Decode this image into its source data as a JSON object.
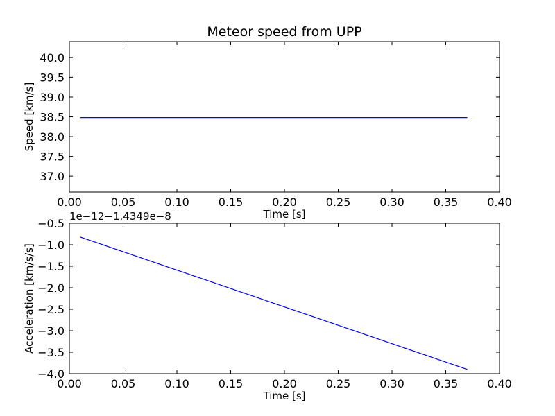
{
  "title": "Meteor speed from  UPP",
  "colors": {
    "line": "#0000ff",
    "axes": "#000000",
    "background": "#ffffff"
  },
  "chart_data": [
    {
      "type": "line",
      "title": "Meteor speed from  UPP",
      "xlabel": "Time [s]",
      "ylabel": "Speed [km/s]",
      "xlim": [
        0.0,
        0.4
      ],
      "ylim": [
        36.6,
        40.4
      ],
      "xticks": [
        "0.00",
        "0.05",
        "0.10",
        "0.15",
        "0.20",
        "0.25",
        "0.30",
        "0.35",
        "0.40"
      ],
      "yticks": [
        "37.0",
        "37.5",
        "38.0",
        "38.5",
        "39.0",
        "39.5",
        "40.0"
      ],
      "x": [
        0.01,
        0.37
      ],
      "y": [
        38.48,
        38.48
      ],
      "grid": false,
      "legend": "none"
    },
    {
      "type": "line",
      "title": "",
      "xlabel": "Time [s]",
      "ylabel": "Acceleration [km/s/s]",
      "offset_label": "1e−12−1.4349e−8",
      "xlim": [
        0.0,
        0.4
      ],
      "ylim": [
        -4.0,
        -0.5
      ],
      "xticks": [
        "0.00",
        "0.05",
        "0.10",
        "0.15",
        "0.20",
        "0.25",
        "0.30",
        "0.35",
        "0.40"
      ],
      "yticks": [
        "−0.5",
        "−1.0",
        "−1.5",
        "−2.0",
        "−2.5",
        "−3.0",
        "−3.5",
        "−4.0"
      ],
      "x": [
        0.01,
        0.37
      ],
      "y": [
        -0.82,
        -3.9
      ],
      "grid": false,
      "legend": "none"
    }
  ]
}
